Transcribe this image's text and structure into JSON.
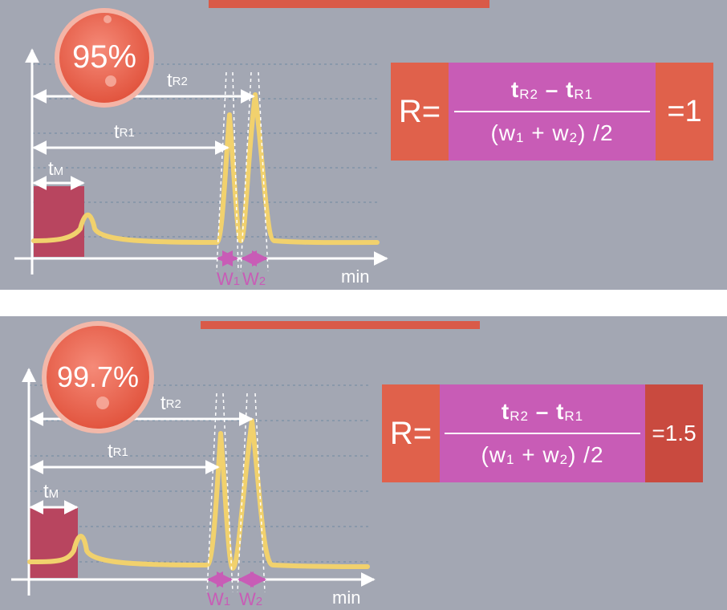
{
  "colors": {
    "panel": "#a3a7b3",
    "peak_line": "#f1d16d",
    "dead_time_box": "#b8455f",
    "badge": "#e95e52",
    "arrow": "#ffffff",
    "width_marker": "#c85cb6",
    "formula_red": "#e0614b",
    "formula_dark_red": "#c94a3f",
    "formula_purple": "#c85cb6"
  },
  "panels": [
    {
      "percent": "95%",
      "resolution": "=1",
      "labels": {
        "tR2": "t",
        "tR2_sub": "R2",
        "tR1": "t",
        "tR1_sub": "R1",
        "tM": "t",
        "tM_sub": "M",
        "w1": "W",
        "w1_sub": "1",
        "w2": "W",
        "w2_sub": "2",
        "axis": "min"
      }
    },
    {
      "percent": "99.7%",
      "resolution": "=1.5",
      "labels": {
        "tR2": "t",
        "tR2_sub": "R2",
        "tR1": "t",
        "tR1_sub": "R1",
        "tM": "t",
        "tM_sub": "M",
        "w1": "W",
        "w1_sub": "1",
        "w2": "W",
        "w2_sub": "2",
        "axis": "min"
      }
    }
  ],
  "formula": {
    "left": "R=",
    "num_t1": "t",
    "num_sub1": "R2",
    "num_op": " – ",
    "num_t2": "t",
    "num_sub2": "R1",
    "den_open": "(w",
    "den_sub1": "1",
    "den_plus": " + w",
    "den_sub2": "2",
    "den_close": ")  /2"
  }
}
